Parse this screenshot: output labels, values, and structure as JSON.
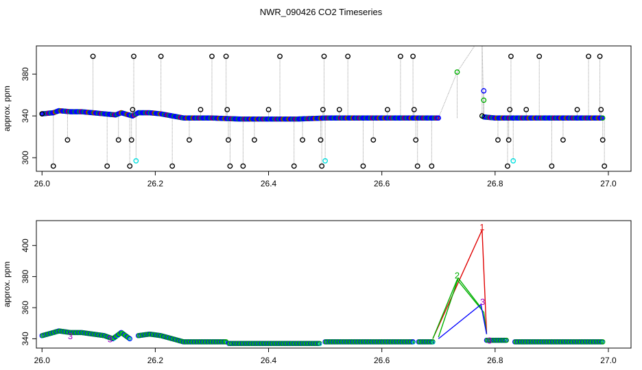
{
  "title": "NWR_090426  CO2 Timeseries",
  "colors": {
    "black": "#000000",
    "blue": "#0000ff",
    "green": "#00b000",
    "red": "#e00000",
    "purple": "#a000c0",
    "cyan": "#00e0e0",
    "gray": "#9a9a9a"
  },
  "chart_data": [
    {
      "type": "scatter",
      "ylabel": "approx. ppm",
      "xlim": [
        25.99,
        27.04
      ],
      "ylim": [
        287,
        407
      ],
      "xticks": [
        "26.0",
        "26.2",
        "26.4",
        "26.6",
        "26.8",
        "27.0"
      ],
      "xtick_values": [
        26.0,
        26.2,
        26.4,
        26.6,
        26.8,
        27.0
      ],
      "yticks": [
        "300",
        "340",
        "380"
      ],
      "ytick_values": [
        300,
        340,
        380
      ],
      "series": [
        {
          "color": "blue",
          "segments": [
            [
              [
                26.0,
                342
              ],
              [
                26.02,
                343
              ],
              [
                26.03,
                345
              ],
              [
                26.05,
                344
              ],
              [
                26.07,
                344
              ],
              [
                26.09,
                343
              ],
              [
                26.11,
                342
              ],
              [
                26.13,
                341
              ],
              [
                26.14,
                343
              ],
              [
                26.16,
                340
              ],
              [
                26.17,
                343
              ],
              [
                26.19,
                343
              ],
              [
                26.21,
                342
              ],
              [
                26.23,
                340
              ],
              [
                26.25,
                338
              ],
              [
                26.3,
                338
              ],
              [
                26.35,
                337
              ],
              [
                26.4,
                337
              ],
              [
                26.45,
                337
              ],
              [
                26.5,
                338
              ],
              [
                26.55,
                338
              ],
              [
                26.6,
                338
              ],
              [
                26.65,
                338
              ],
              [
                26.7,
                338
              ]
            ],
            [
              [
                26.78,
                339
              ],
              [
                26.8,
                338
              ],
              [
                26.85,
                338
              ],
              [
                26.9,
                338
              ],
              [
                26.95,
                338
              ],
              [
                26.99,
                338
              ]
            ]
          ]
        }
      ],
      "outliers": [
        {
          "x": 26.0,
          "y": 342,
          "color": "black"
        },
        {
          "x": 26.02,
          "y": 292,
          "color": "black"
        },
        {
          "x": 26.045,
          "y": 317,
          "color": "black"
        },
        {
          "x": 26.09,
          "y": 397,
          "color": "black"
        },
        {
          "x": 26.115,
          "y": 292,
          "color": "black"
        },
        {
          "x": 26.135,
          "y": 317,
          "color": "black"
        },
        {
          "x": 26.155,
          "y": 292,
          "color": "black"
        },
        {
          "x": 26.158,
          "y": 317,
          "color": "black"
        },
        {
          "x": 26.16,
          "y": 346,
          "color": "black"
        },
        {
          "x": 26.162,
          "y": 397,
          "color": "black"
        },
        {
          "x": 26.166,
          "y": 297,
          "color": "cyan"
        },
        {
          "x": 26.21,
          "y": 397,
          "color": "black"
        },
        {
          "x": 26.23,
          "y": 292,
          "color": "black"
        },
        {
          "x": 26.26,
          "y": 317,
          "color": "black"
        },
        {
          "x": 26.28,
          "y": 346,
          "color": "black"
        },
        {
          "x": 26.3,
          "y": 397,
          "color": "black"
        },
        {
          "x": 26.325,
          "y": 397,
          "color": "black"
        },
        {
          "x": 26.327,
          "y": 346,
          "color": "black"
        },
        {
          "x": 26.329,
          "y": 317,
          "color": "black"
        },
        {
          "x": 26.332,
          "y": 292,
          "color": "black"
        },
        {
          "x": 26.355,
          "y": 292,
          "color": "black"
        },
        {
          "x": 26.375,
          "y": 317,
          "color": "black"
        },
        {
          "x": 26.4,
          "y": 346,
          "color": "black"
        },
        {
          "x": 26.42,
          "y": 397,
          "color": "black"
        },
        {
          "x": 26.445,
          "y": 292,
          "color": "black"
        },
        {
          "x": 26.46,
          "y": 317,
          "color": "black"
        },
        {
          "x": 26.492,
          "y": 317,
          "color": "black"
        },
        {
          "x": 26.494,
          "y": 292,
          "color": "black"
        },
        {
          "x": 26.496,
          "y": 346,
          "color": "black"
        },
        {
          "x": 26.498,
          "y": 397,
          "color": "black"
        },
        {
          "x": 26.5,
          "y": 297,
          "color": "cyan"
        },
        {
          "x": 26.525,
          "y": 346,
          "color": "black"
        },
        {
          "x": 26.54,
          "y": 397,
          "color": "black"
        },
        {
          "x": 26.567,
          "y": 292,
          "color": "black"
        },
        {
          "x": 26.585,
          "y": 317,
          "color": "black"
        },
        {
          "x": 26.61,
          "y": 346,
          "color": "black"
        },
        {
          "x": 26.633,
          "y": 397,
          "color": "black"
        },
        {
          "x": 26.655,
          "y": 397,
          "color": "black"
        },
        {
          "x": 26.657,
          "y": 346,
          "color": "black"
        },
        {
          "x": 26.66,
          "y": 317,
          "color": "black"
        },
        {
          "x": 26.663,
          "y": 292,
          "color": "black"
        },
        {
          "x": 26.688,
          "y": 292,
          "color": "black"
        },
        {
          "x": 26.733,
          "y": 382,
          "color": "green"
        },
        {
          "x": 26.777,
          "y": 412,
          "color": "red"
        },
        {
          "x": 26.777,
          "y": 340,
          "color": "black"
        },
        {
          "x": 26.78,
          "y": 364,
          "color": "blue"
        },
        {
          "x": 26.78,
          "y": 355,
          "color": "green"
        },
        {
          "x": 26.805,
          "y": 317,
          "color": "black"
        },
        {
          "x": 26.822,
          "y": 292,
          "color": "black"
        },
        {
          "x": 26.824,
          "y": 317,
          "color": "black"
        },
        {
          "x": 26.826,
          "y": 346,
          "color": "black"
        },
        {
          "x": 26.828,
          "y": 397,
          "color": "black"
        },
        {
          "x": 26.832,
          "y": 297,
          "color": "cyan"
        },
        {
          "x": 26.855,
          "y": 346,
          "color": "black"
        },
        {
          "x": 26.878,
          "y": 397,
          "color": "black"
        },
        {
          "x": 26.9,
          "y": 292,
          "color": "black"
        },
        {
          "x": 26.92,
          "y": 317,
          "color": "black"
        },
        {
          "x": 26.945,
          "y": 346,
          "color": "black"
        },
        {
          "x": 26.965,
          "y": 397,
          "color": "black"
        },
        {
          "x": 26.985,
          "y": 397,
          "color": "black"
        },
        {
          "x": 26.987,
          "y": 346,
          "color": "black"
        },
        {
          "x": 26.99,
          "y": 317,
          "color": "black"
        },
        {
          "x": 26.993,
          "y": 292,
          "color": "black"
        }
      ]
    },
    {
      "type": "scatter",
      "ylabel": "approx. ppm",
      "xlim": [
        25.99,
        27.04
      ],
      "ylim": [
        334,
        416
      ],
      "xticks": [
        "26.0",
        "26.2",
        "26.4",
        "26.6",
        "26.8",
        "27.0"
      ],
      "xtick_values": [
        26.0,
        26.2,
        26.4,
        26.6,
        26.8,
        27.0
      ],
      "yticks": [
        "340",
        "360",
        "380",
        "400"
      ],
      "ytick_values": [
        340,
        360,
        380,
        400
      ],
      "series": [
        {
          "color": "green",
          "segments": [
            [
              [
                26.0,
                342
              ],
              [
                26.02,
                344
              ],
              [
                26.03,
                345
              ],
              [
                26.05,
                344
              ],
              [
                26.07,
                344
              ],
              [
                26.09,
                343
              ],
              [
                26.11,
                342
              ],
              [
                26.125,
                340
              ],
              [
                26.14,
                344
              ],
              [
                26.155,
                340
              ]
            ],
            [
              [
                26.17,
                342
              ],
              [
                26.19,
                343
              ],
              [
                26.21,
                342
              ],
              [
                26.23,
                340
              ],
              [
                26.25,
                338
              ],
              [
                26.3,
                338
              ],
              [
                26.325,
                338
              ]
            ],
            [
              [
                26.33,
                337
              ],
              [
                26.4,
                337
              ],
              [
                26.45,
                337
              ],
              [
                26.49,
                337
              ]
            ],
            [
              [
                26.5,
                338
              ],
              [
                26.55,
                338
              ],
              [
                26.6,
                338
              ],
              [
                26.655,
                338
              ]
            ],
            [
              [
                26.665,
                338
              ],
              [
                26.69,
                338
              ]
            ],
            [
              [
                26.785,
                339
              ],
              [
                26.82,
                339
              ]
            ],
            [
              [
                26.835,
                338
              ],
              [
                26.9,
                338
              ],
              [
                26.95,
                338
              ],
              [
                26.99,
                338
              ]
            ]
          ]
        }
      ],
      "spikes": [
        {
          "color": "red",
          "points": [
            [
              26.69,
              340
            ],
            [
              26.777,
              410
            ],
            [
              26.785,
              343
            ]
          ]
        },
        {
          "color": "green",
          "points": [
            [
              26.69,
              340
            ],
            [
              26.733,
              378
            ],
            [
              26.78,
              357
            ],
            [
              26.785,
              343
            ]
          ]
        },
        {
          "color": "green",
          "points": [
            [
              26.7,
              341
            ],
            [
              26.735,
              379
            ],
            [
              26.775,
              360
            ]
          ]
        },
        {
          "color": "blue",
          "points": [
            [
              26.7,
              340
            ],
            [
              26.775,
              362
            ],
            [
              26.785,
              343
            ]
          ]
        }
      ],
      "labels": [
        {
          "text": "1",
          "x": 26.777,
          "y": 412,
          "color": "red"
        },
        {
          "text": "2",
          "x": 26.733,
          "y": 381,
          "color": "green"
        },
        {
          "text": "3",
          "x": 26.778,
          "y": 364,
          "color": "purple"
        },
        {
          "text": "3",
          "x": 26.05,
          "y": 342,
          "color": "purple"
        },
        {
          "text": "3",
          "x": 26.12,
          "y": 340,
          "color": "purple"
        },
        {
          "text": "3",
          "x": 26.79,
          "y": 339,
          "color": "purple"
        }
      ]
    }
  ]
}
